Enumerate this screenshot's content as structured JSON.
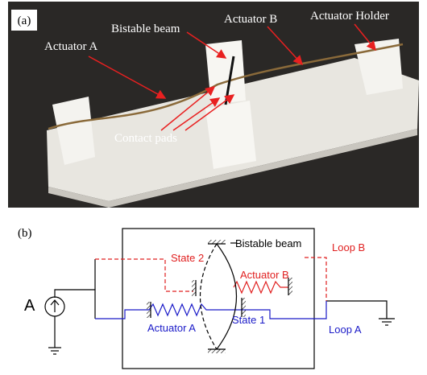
{
  "panel_a": {
    "label": "(a)",
    "annotations": [
      "Actuator A",
      "Bistable beam",
      "Actuator B",
      "Actuator Holder",
      "Contact pads"
    ]
  },
  "panel_b": {
    "label": "(b)",
    "labels": {
      "bistable_beam": "Bistable beam",
      "state_2": "State 2",
      "loop_b": "Loop B",
      "actuator_b": "Actuator B",
      "source": "A",
      "actuator_a": "Actuator A",
      "state_1": "State 1",
      "loop_a": "Loop A"
    }
  }
}
